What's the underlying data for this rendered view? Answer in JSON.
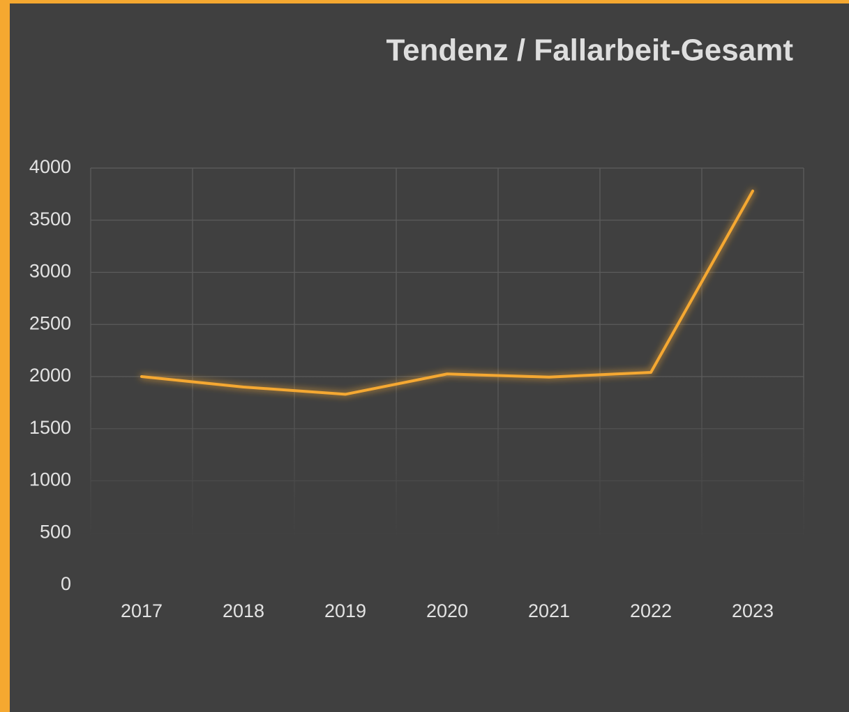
{
  "chart_data": {
    "type": "line",
    "title": "Tendenz / Fallarbeit-Gesamt",
    "categories": [
      "2017",
      "2018",
      "2019",
      "2020",
      "2021",
      "2022",
      "2023"
    ],
    "series": [
      {
        "name": "Fallarbeit-Gesamt",
        "color": "#f5a830",
        "values": [
          2000,
          1900,
          1830,
          2025,
          1995,
          2040,
          3780
        ]
      }
    ],
    "ylim": [
      0,
      4000
    ],
    "yticks": [
      0,
      500,
      1000,
      1500,
      2000,
      2500,
      3000,
      3500,
      4000
    ],
    "grid": true
  }
}
